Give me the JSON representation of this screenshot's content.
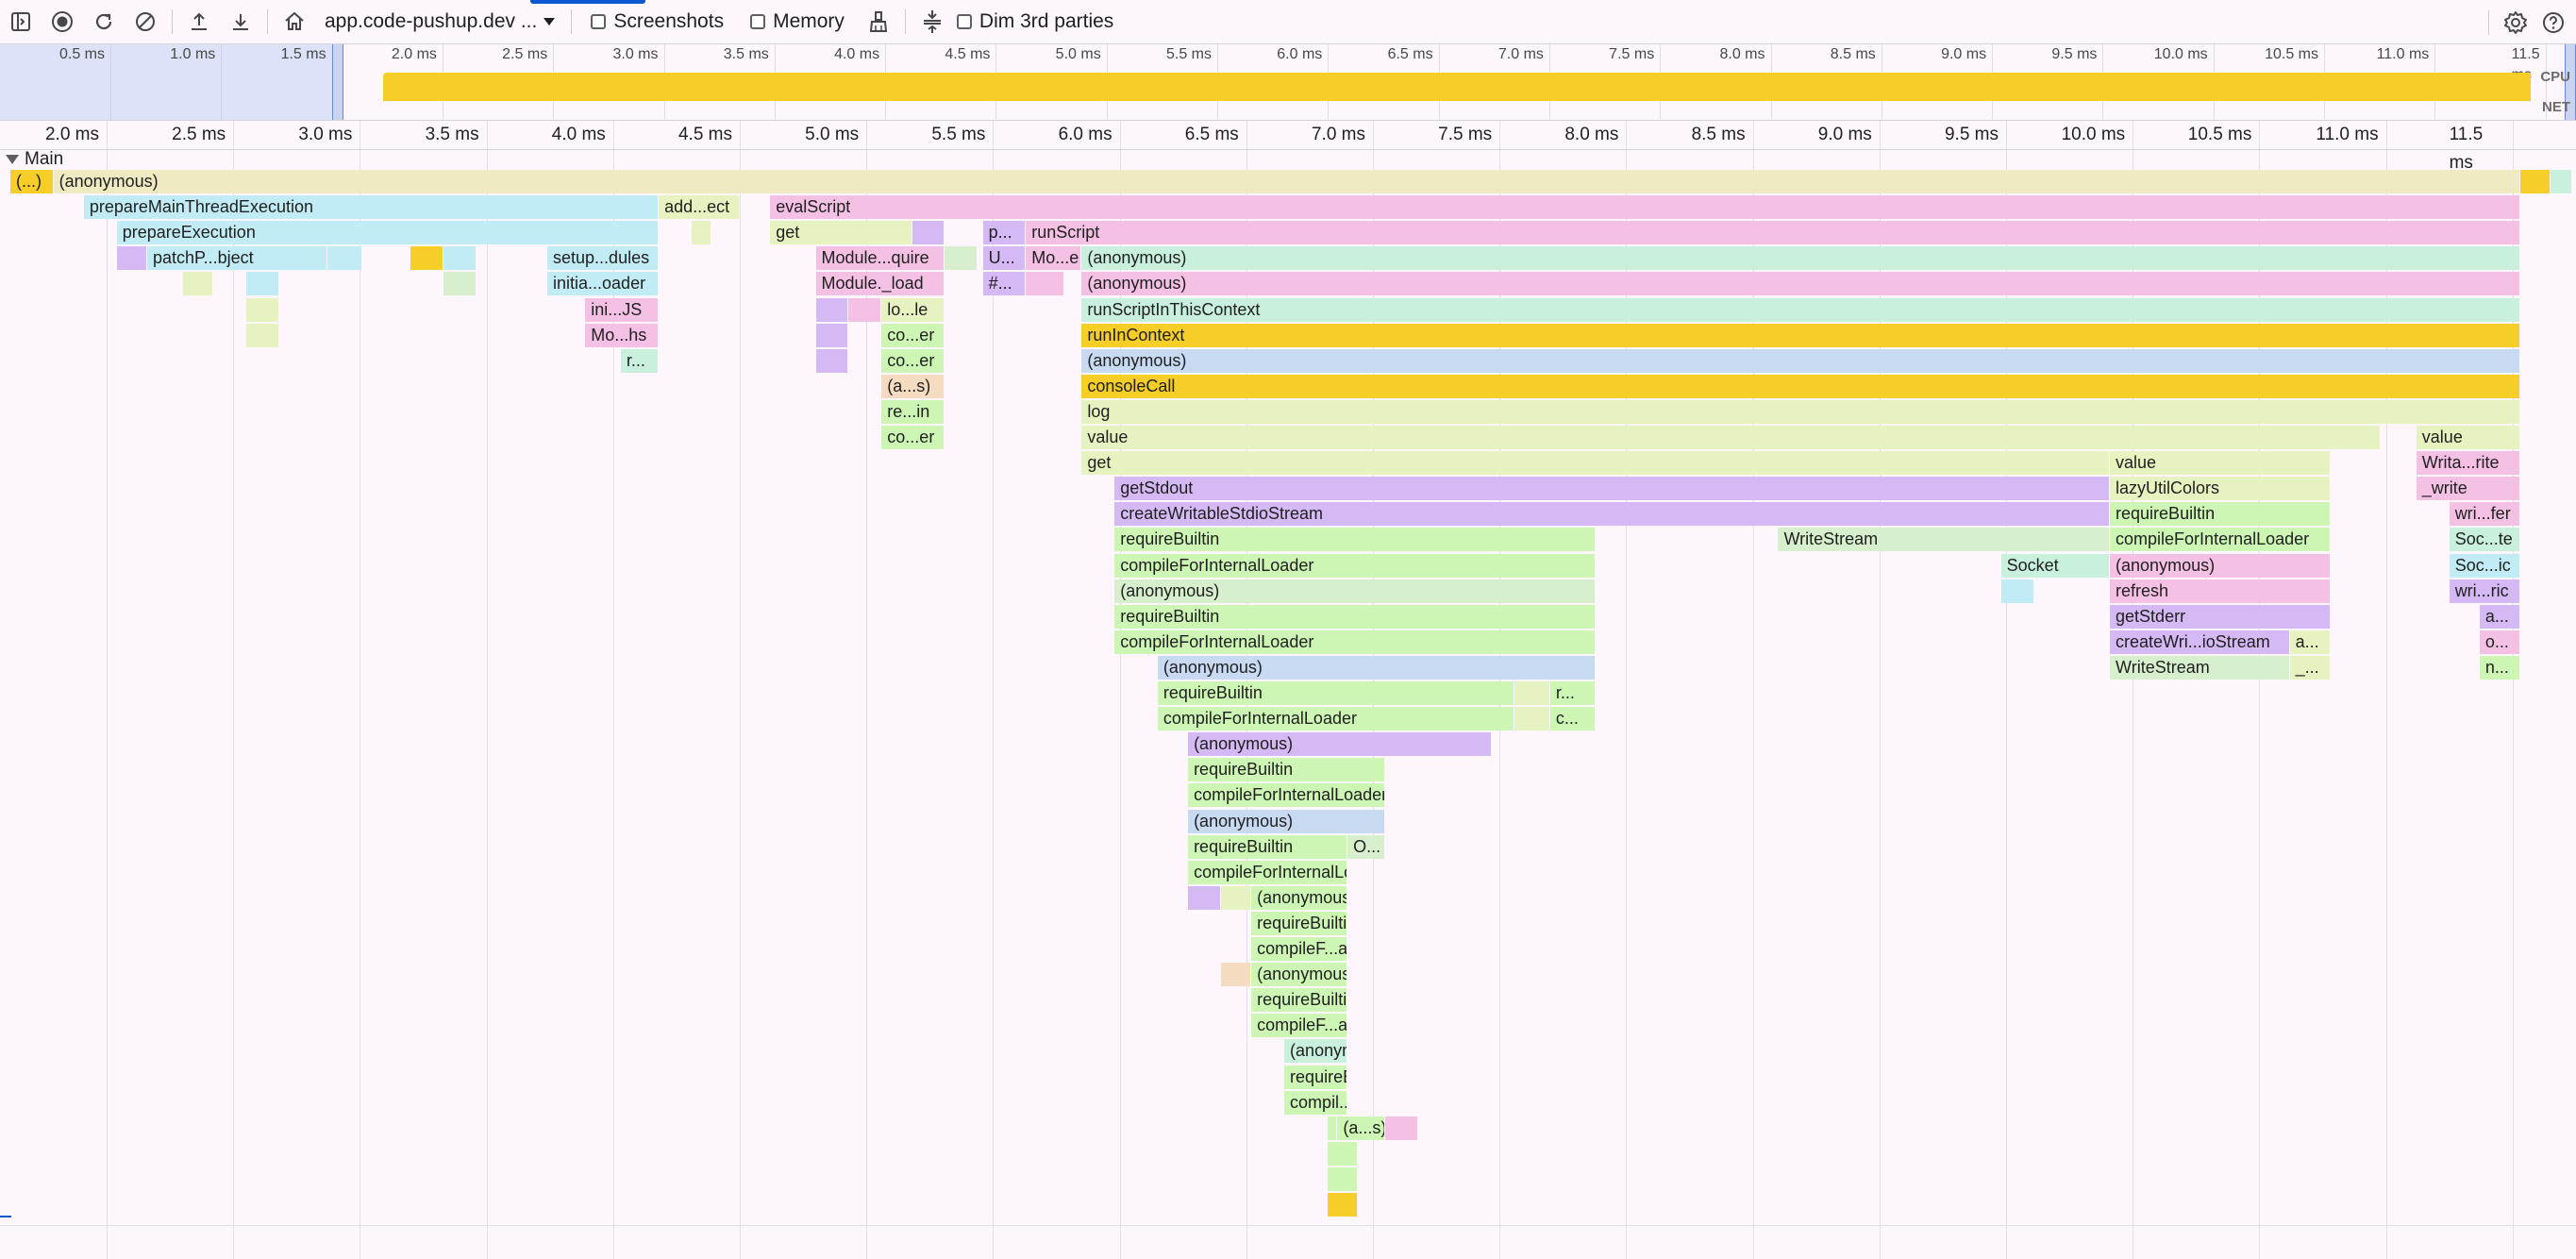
{
  "toolbar": {
    "site_select": "app.code-pushup.dev ...",
    "screenshots_label": "Screenshots",
    "memory_label": "Memory",
    "dim_label": "Dim 3rd parties"
  },
  "overview": {
    "ticks": [
      "0.5 ms",
      "1.0 ms",
      "1.5 ms",
      "2.0 ms",
      "2.5 ms",
      "3.0 ms",
      "3.5 ms",
      "4.0 ms",
      "4.5 ms",
      "5.0 ms",
      "5.5 ms",
      "6.0 ms",
      "6.5 ms",
      "7.0 ms",
      "7.5 ms",
      "8.0 ms",
      "8.5 ms",
      "9.0 ms",
      "9.5 ms",
      "10.0 ms",
      "10.5 ms",
      "11.0 ms",
      "11.5 ms"
    ],
    "cpu_label": "CPU",
    "net_label": "NET"
  },
  "ruler": {
    "ticks": [
      "2.0 ms",
      "2.5 ms",
      "3.0 ms",
      "3.5 ms",
      "4.0 ms",
      "4.5 ms",
      "5.0 ms",
      "5.5 ms",
      "6.0 ms",
      "6.5 ms",
      "7.0 ms",
      "7.5 ms",
      "8.0 ms",
      "8.5 ms",
      "9.0 ms",
      "9.5 ms",
      "10.0 ms",
      "10.5 ms",
      "11.0 ms",
      "11.5 ms"
    ]
  },
  "track": {
    "name": "Main"
  },
  "colors": {
    "yellow": "#f7cd27",
    "beige": "#efeac2",
    "cyan": "#c2ecf5",
    "pink": "#f4c0e4",
    "purple": "#d5b9f4",
    "mint": "#c8f0dc",
    "green": "#cdf5b4",
    "lime": "#e6f2c0",
    "peach": "#f5dcc0",
    "blue": "#c8daf2",
    "lightgreen": "#d7efcd"
  },
  "flame": [
    {
      "d": 0,
      "s": 1.62,
      "e": 1.79,
      "c": "yellow",
      "t": "(...)"
    },
    {
      "d": 0,
      "s": 1.79,
      "e": 11.53,
      "c": "beige",
      "t": "(anonymous)"
    },
    {
      "d": 0,
      "s": 11.53,
      "e": 11.65,
      "c": "yellow",
      "t": ""
    },
    {
      "d": 0,
      "s": 11.65,
      "e": 11.78,
      "c": "mint",
      "t": ""
    },
    {
      "d": 0,
      "s": 11.78,
      "e": 11.86,
      "c": "yellow",
      "t": ""
    },
    {
      "d": 1,
      "s": 1.91,
      "e": 4.18,
      "c": "cyan",
      "t": "prepareMainThreadExecution"
    },
    {
      "d": 1,
      "s": 4.18,
      "e": 4.5,
      "c": "lime",
      "t": "add...ect"
    },
    {
      "d": 1,
      "s": 4.62,
      "e": 11.53,
      "c": "pink",
      "t": "evalScript"
    },
    {
      "d": 2,
      "s": 2.04,
      "e": 4.18,
      "c": "cyan",
      "t": "prepareExecution"
    },
    {
      "d": 2,
      "s": 4.31,
      "e": 4.39,
      "c": "lime",
      "t": ""
    },
    {
      "d": 2,
      "s": 4.62,
      "e": 5.18,
      "c": "lime",
      "t": "get"
    },
    {
      "d": 2,
      "s": 5.18,
      "e": 5.31,
      "c": "purple",
      "t": ""
    },
    {
      "d": 2,
      "s": 5.46,
      "e": 5.63,
      "c": "purple",
      "t": "p..."
    },
    {
      "d": 2,
      "s": 5.63,
      "e": 11.53,
      "c": "pink",
      "t": "runScript"
    },
    {
      "d": 3,
      "s": 2.04,
      "e": 2.16,
      "c": "purple",
      "t": ""
    },
    {
      "d": 3,
      "s": 2.16,
      "e": 2.87,
      "c": "cyan",
      "t": "patchP...bject"
    },
    {
      "d": 3,
      "s": 2.87,
      "e": 3.01,
      "c": "cyan",
      "t": ""
    },
    {
      "d": 3,
      "s": 3.2,
      "e": 3.33,
      "c": "yellow",
      "t": ""
    },
    {
      "d": 3,
      "s": 3.33,
      "e": 3.46,
      "c": "cyan",
      "t": ""
    },
    {
      "d": 3,
      "s": 3.74,
      "e": 4.18,
      "c": "cyan",
      "t": "setup...dules"
    },
    {
      "d": 3,
      "s": 4.8,
      "e": 5.31,
      "c": "pink",
      "t": "Module...quire"
    },
    {
      "d": 3,
      "s": 5.31,
      "e": 5.44,
      "c": "lightgreen",
      "t": ""
    },
    {
      "d": 3,
      "s": 5.46,
      "e": 5.63,
      "c": "purple",
      "t": "U..."
    },
    {
      "d": 3,
      "s": 5.63,
      "e": 5.85,
      "c": "pink",
      "t": "Mo...e"
    },
    {
      "d": 3,
      "s": 5.85,
      "e": 11.53,
      "c": "mint",
      "t": "(anonymous)"
    },
    {
      "d": 4,
      "s": 2.3,
      "e": 2.42,
      "c": "lime",
      "t": ""
    },
    {
      "d": 4,
      "s": 2.55,
      "e": 2.68,
      "c": "cyan",
      "t": ""
    },
    {
      "d": 4,
      "s": 3.33,
      "e": 3.46,
      "c": "lightgreen",
      "t": ""
    },
    {
      "d": 4,
      "s": 3.74,
      "e": 4.18,
      "c": "cyan",
      "t": "initia...oader"
    },
    {
      "d": 4,
      "s": 4.8,
      "e": 5.31,
      "c": "pink",
      "t": "Module._load"
    },
    {
      "d": 4,
      "s": 5.46,
      "e": 5.63,
      "c": "purple",
      "t": "#..."
    },
    {
      "d": 4,
      "s": 5.63,
      "e": 5.78,
      "c": "pink",
      "t": ""
    },
    {
      "d": 4,
      "s": 5.85,
      "e": 11.53,
      "c": "pink",
      "t": "(anonymous)"
    },
    {
      "d": 5,
      "s": 2.55,
      "e": 2.68,
      "c": "lime",
      "t": ""
    },
    {
      "d": 5,
      "s": 3.89,
      "e": 4.18,
      "c": "pink",
      "t": "ini...JS"
    },
    {
      "d": 5,
      "s": 4.8,
      "e": 4.93,
      "c": "purple",
      "t": ""
    },
    {
      "d": 5,
      "s": 4.93,
      "e": 5.06,
      "c": "pink",
      "t": ""
    },
    {
      "d": 5,
      "s": 5.06,
      "e": 5.31,
      "c": "lime",
      "t": "lo...le"
    },
    {
      "d": 5,
      "s": 5.85,
      "e": 11.53,
      "c": "mint",
      "t": "runScriptInThisContext"
    },
    {
      "d": 6,
      "s": 2.55,
      "e": 2.68,
      "c": "lime",
      "t": ""
    },
    {
      "d": 6,
      "s": 3.89,
      "e": 4.18,
      "c": "pink",
      "t": "Mo...hs"
    },
    {
      "d": 6,
      "s": 4.8,
      "e": 4.93,
      "c": "purple",
      "t": ""
    },
    {
      "d": 6,
      "s": 5.06,
      "e": 5.31,
      "c": "green",
      "t": "co...er"
    },
    {
      "d": 6,
      "s": 5.85,
      "e": 11.53,
      "c": "yellow",
      "t": "runInContext"
    },
    {
      "d": 7,
      "s": 4.03,
      "e": 4.18,
      "c": "mint",
      "t": "r..."
    },
    {
      "d": 7,
      "s": 4.8,
      "e": 4.93,
      "c": "purple",
      "t": ""
    },
    {
      "d": 7,
      "s": 5.06,
      "e": 5.31,
      "c": "green",
      "t": "co...er"
    },
    {
      "d": 7,
      "s": 5.85,
      "e": 11.53,
      "c": "blue",
      "t": "(anonymous)"
    },
    {
      "d": 8,
      "s": 5.06,
      "e": 5.31,
      "c": "peach",
      "t": "(a...s)"
    },
    {
      "d": 8,
      "s": 5.85,
      "e": 11.53,
      "c": "yellow",
      "t": "consoleCall"
    },
    {
      "d": 9,
      "s": 5.06,
      "e": 5.31,
      "c": "green",
      "t": "re...in"
    },
    {
      "d": 9,
      "s": 5.85,
      "e": 11.53,
      "c": "lime",
      "t": "log"
    },
    {
      "d": 10,
      "s": 5.06,
      "e": 5.31,
      "c": "green",
      "t": "co...er"
    },
    {
      "d": 10,
      "s": 5.85,
      "e": 10.98,
      "c": "lime",
      "t": "value"
    },
    {
      "d": 10,
      "s": 11.12,
      "e": 11.53,
      "c": "lime",
      "t": "value"
    },
    {
      "d": 11,
      "s": 5.85,
      "e": 9.91,
      "c": "lime",
      "t": "get"
    },
    {
      "d": 11,
      "s": 9.91,
      "e": 10.78,
      "c": "lime",
      "t": "value"
    },
    {
      "d": 11,
      "s": 11.12,
      "e": 11.53,
      "c": "pink",
      "t": "Writa...rite"
    },
    {
      "d": 12,
      "s": 5.98,
      "e": 9.91,
      "c": "purple",
      "t": "getStdout"
    },
    {
      "d": 12,
      "s": 9.91,
      "e": 10.78,
      "c": "lime",
      "t": "lazyUtilColors"
    },
    {
      "d": 12,
      "s": 11.12,
      "e": 11.53,
      "c": "pink",
      "t": "_write"
    },
    {
      "d": 13,
      "s": 5.98,
      "e": 9.91,
      "c": "purple",
      "t": "createWritableStdioStream"
    },
    {
      "d": 13,
      "s": 9.91,
      "e": 10.78,
      "c": "green",
      "t": "requireBuiltin"
    },
    {
      "d": 13,
      "s": 11.25,
      "e": 11.53,
      "c": "pink",
      "t": "wri...fer"
    },
    {
      "d": 14,
      "s": 5.98,
      "e": 7.88,
      "c": "green",
      "t": "requireBuiltin"
    },
    {
      "d": 14,
      "s": 8.6,
      "e": 9.91,
      "c": "lightgreen",
      "t": "WriteStream"
    },
    {
      "d": 14,
      "s": 9.91,
      "e": 10.78,
      "c": "green",
      "t": "compileForInternalLoader"
    },
    {
      "d": 14,
      "s": 11.25,
      "e": 11.53,
      "c": "mint",
      "t": "Soc...te"
    },
    {
      "d": 15,
      "s": 5.98,
      "e": 7.88,
      "c": "green",
      "t": "compileForInternalLoader"
    },
    {
      "d": 15,
      "s": 9.48,
      "e": 9.91,
      "c": "mint",
      "t": "Socket"
    },
    {
      "d": 15,
      "s": 9.91,
      "e": 10.78,
      "c": "pink",
      "t": "(anonymous)"
    },
    {
      "d": 15,
      "s": 11.25,
      "e": 11.53,
      "c": "cyan",
      "t": "Soc...ic"
    },
    {
      "d": 16,
      "s": 5.98,
      "e": 7.88,
      "c": "lightgreen",
      "t": "(anonymous)"
    },
    {
      "d": 16,
      "s": 9.48,
      "e": 9.61,
      "c": "cyan",
      "t": ""
    },
    {
      "d": 16,
      "s": 9.91,
      "e": 10.78,
      "c": "pink",
      "t": "refresh"
    },
    {
      "d": 16,
      "s": 11.25,
      "e": 11.53,
      "c": "purple",
      "t": "wri...ric"
    },
    {
      "d": 17,
      "s": 5.98,
      "e": 7.88,
      "c": "green",
      "t": "requireBuiltin"
    },
    {
      "d": 17,
      "s": 9.91,
      "e": 10.78,
      "c": "purple",
      "t": "getStderr"
    },
    {
      "d": 17,
      "s": 11.37,
      "e": 11.53,
      "c": "purple",
      "t": "a..."
    },
    {
      "d": 18,
      "s": 5.98,
      "e": 7.88,
      "c": "green",
      "t": "compileForInternalLoader"
    },
    {
      "d": 18,
      "s": 9.91,
      "e": 10.62,
      "c": "purple",
      "t": "createWri...ioStream"
    },
    {
      "d": 18,
      "s": 10.62,
      "e": 10.78,
      "c": "lime",
      "t": "a..."
    },
    {
      "d": 18,
      "s": 11.37,
      "e": 11.53,
      "c": "pink",
      "t": "o..."
    },
    {
      "d": 19,
      "s": 6.15,
      "e": 7.88,
      "c": "blue",
      "t": "(anonymous)"
    },
    {
      "d": 19,
      "s": 9.91,
      "e": 10.62,
      "c": "lightgreen",
      "t": "WriteStream"
    },
    {
      "d": 19,
      "s": 10.62,
      "e": 10.78,
      "c": "lime",
      "t": "_..."
    },
    {
      "d": 19,
      "s": 11.37,
      "e": 11.53,
      "c": "green",
      "t": "n..."
    },
    {
      "d": 20,
      "s": 6.15,
      "e": 7.56,
      "c": "green",
      "t": "requireBuiltin"
    },
    {
      "d": 20,
      "s": 7.56,
      "e": 7.7,
      "c": "lime",
      "t": ""
    },
    {
      "d": 20,
      "s": 7.7,
      "e": 7.88,
      "c": "green",
      "t": "r..."
    },
    {
      "d": 21,
      "s": 6.15,
      "e": 7.56,
      "c": "green",
      "t": "compileForInternalLoader"
    },
    {
      "d": 21,
      "s": 7.56,
      "e": 7.7,
      "c": "lime",
      "t": ""
    },
    {
      "d": 21,
      "s": 7.7,
      "e": 7.88,
      "c": "green",
      "t": "c..."
    },
    {
      "d": 22,
      "s": 6.27,
      "e": 7.47,
      "c": "purple",
      "t": "(anonymous)"
    },
    {
      "d": 23,
      "s": 6.27,
      "e": 7.05,
      "c": "green",
      "t": "requireBuiltin"
    },
    {
      "d": 24,
      "s": 6.27,
      "e": 7.05,
      "c": "green",
      "t": "compileForInternalLoader"
    },
    {
      "d": 25,
      "s": 6.27,
      "e": 7.05,
      "c": "blue",
      "t": "(anonymous)"
    },
    {
      "d": 26,
      "s": 6.27,
      "e": 6.9,
      "c": "green",
      "t": "requireBuiltin"
    },
    {
      "d": 26,
      "s": 6.9,
      "e": 7.05,
      "c": "lightgreen",
      "t": "O..."
    },
    {
      "d": 27,
      "s": 6.27,
      "e": 6.9,
      "c": "green",
      "t": "compileForInternalLoader"
    },
    {
      "d": 28,
      "s": 6.27,
      "e": 6.4,
      "c": "purple",
      "t": ""
    },
    {
      "d": 28,
      "s": 6.4,
      "e": 6.52,
      "c": "lime",
      "t": ""
    },
    {
      "d": 28,
      "s": 6.52,
      "e": 6.9,
      "c": "green",
      "t": "(anonymous)"
    },
    {
      "d": 29,
      "s": 6.52,
      "e": 6.9,
      "c": "green",
      "t": "requireBuiltin"
    },
    {
      "d": 30,
      "s": 6.52,
      "e": 6.9,
      "c": "green",
      "t": "compileF...alLoader"
    },
    {
      "d": 31,
      "s": 6.4,
      "e": 6.52,
      "c": "peach",
      "t": ""
    },
    {
      "d": 31,
      "s": 6.52,
      "e": 6.9,
      "c": "green",
      "t": "(anonymous)"
    },
    {
      "d": 32,
      "s": 6.52,
      "e": 6.9,
      "c": "green",
      "t": "requireBuiltin"
    },
    {
      "d": 33,
      "s": 6.52,
      "e": 6.9,
      "c": "green",
      "t": "compileF...alLoader"
    },
    {
      "d": 34,
      "s": 6.65,
      "e": 6.9,
      "c": "mint",
      "t": "(anonymous)"
    },
    {
      "d": 35,
      "s": 6.65,
      "e": 6.9,
      "c": "green",
      "t": "requireBuiltin"
    },
    {
      "d": 36,
      "s": 6.65,
      "e": 6.9,
      "c": "green",
      "t": "compil...Loader"
    },
    {
      "d": 37,
      "s": 6.82,
      "e": 6.86,
      "c": "green",
      "t": ""
    },
    {
      "d": 37,
      "s": 6.86,
      "e": 7.05,
      "c": "green",
      "t": "(a...s)"
    },
    {
      "d": 37,
      "s": 7.05,
      "e": 7.18,
      "c": "pink",
      "t": ""
    },
    {
      "d": 38,
      "s": 6.82,
      "e": 6.94,
      "c": "green",
      "t": ""
    },
    {
      "d": 39,
      "s": 6.82,
      "e": 6.94,
      "c": "green",
      "t": ""
    },
    {
      "d": 40,
      "s": 6.82,
      "e": 6.94,
      "c": "yellow",
      "t": ""
    }
  ]
}
